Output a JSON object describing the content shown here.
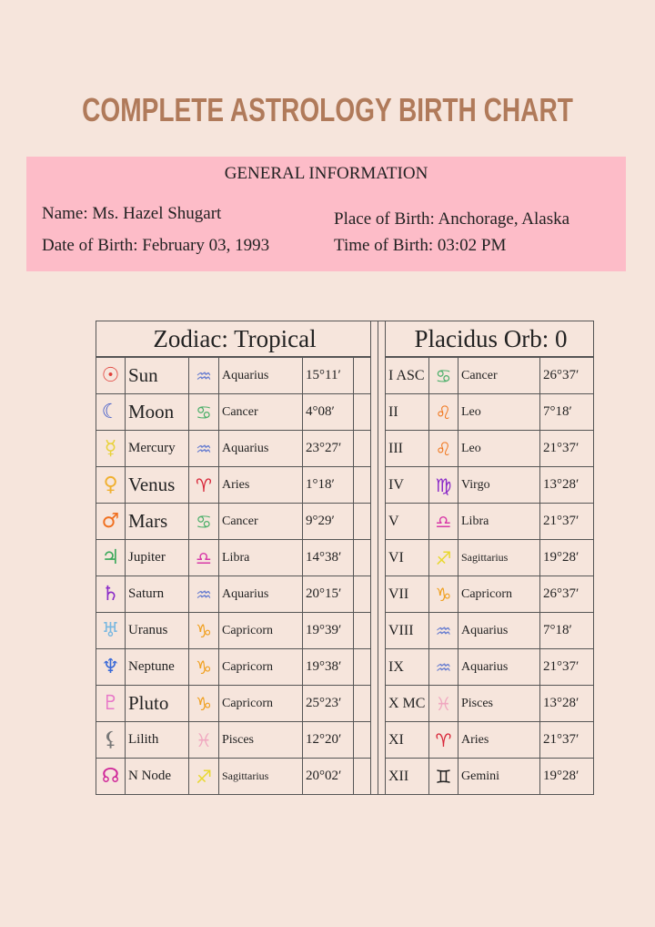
{
  "title": "COMPLETE ASTROLOGY BIRTH CHART",
  "general_info": {
    "heading": "GENERAL INFORMATION",
    "name": "Name: Ms. Hazel Shugart",
    "date_of_birth": "Date of Birth: February 03, 1993",
    "place_of_birth": "Place of Birth: Anchorage, Alaska",
    "time_of_birth": "Time of Birth: 03:02 PM"
  },
  "zodiac_table": {
    "header": "Zodiac: Tropical",
    "rows": [
      {
        "symbol": "☉",
        "symbol_color": "#e0403a",
        "name": "Sun",
        "sign_symbol": "♒",
        "sign_color": "#6a7fd0",
        "sign": "Aquarius",
        "degree": "15°11′"
      },
      {
        "symbol": "☾",
        "symbol_color": "#3a55c8",
        "name": "Moon",
        "sign_symbol": "♋",
        "sign_color": "#4caf6a",
        "sign": "Cancer",
        "degree": "4°08′"
      },
      {
        "symbol": "☿",
        "symbol_color": "#e8d23a",
        "name": "Mercury",
        "sign_symbol": "♒",
        "sign_color": "#6a7fd0",
        "sign": "Aquarius",
        "degree": "23°27′"
      },
      {
        "symbol": "♀",
        "symbol_color": "#f0b030",
        "name": "Venus",
        "sign_symbol": "♈",
        "sign_color": "#d8283a",
        "sign": "Aries",
        "degree": "1°18′"
      },
      {
        "symbol": "♂",
        "symbol_color": "#f07020",
        "name": "Mars",
        "sign_symbol": "♋",
        "sign_color": "#4caf6a",
        "sign": "Cancer",
        "degree": "9°29′"
      },
      {
        "symbol": "♃",
        "symbol_color": "#3aa85a",
        "name": "Jupiter",
        "sign_symbol": "♎",
        "sign_color": "#d83aa8",
        "sign": "Libra",
        "degree": "14°38′"
      },
      {
        "symbol": "♄",
        "symbol_color": "#8a2ac8",
        "name": "Saturn",
        "sign_symbol": "♒",
        "sign_color": "#6a7fd0",
        "sign": "Aquarius",
        "degree": "20°15′"
      },
      {
        "symbol": "♅",
        "symbol_color": "#7ab8e0",
        "name": "Uranus",
        "sign_symbol": "♑",
        "sign_color": "#f0a020",
        "sign": "Capricorn",
        "degree": "19°39′"
      },
      {
        "symbol": "♆",
        "symbol_color": "#3a6ad8",
        "name": "Neptune",
        "sign_symbol": "♑",
        "sign_color": "#f0a020",
        "sign": "Capricorn",
        "degree": "19°38′"
      },
      {
        "symbol": "♇",
        "symbol_color": "#e878c8",
        "name": "Pluto",
        "sign_symbol": "♑",
        "sign_color": "#f0a020",
        "sign": "Capricorn",
        "degree": "25°23′"
      },
      {
        "symbol": "⚸",
        "symbol_color": "#777777",
        "name": "Lilith",
        "sign_symbol": "♓",
        "sign_color": "#f0a8c0",
        "sign": "Pisces",
        "degree": "12°20′"
      },
      {
        "symbol": "☊",
        "symbol_color": "#d02a9a",
        "name": "N Node",
        "sign_symbol": "♐",
        "sign_color": "#e8d830",
        "sign": "Sagittarius",
        "degree": "20°02′"
      }
    ]
  },
  "houses_table": {
    "header": "Placidus Orb: 0",
    "rows": [
      {
        "house": "I ASC",
        "sign_symbol": "♋",
        "sign_color": "#4caf6a",
        "sign": "Cancer",
        "degree": "26°37′"
      },
      {
        "house": "II",
        "sign_symbol": "♌",
        "sign_color": "#f07820",
        "sign": "Leo",
        "degree": "7°18′"
      },
      {
        "house": "III",
        "sign_symbol": "♌",
        "sign_color": "#f07820",
        "sign": "Leo",
        "degree": "21°37′"
      },
      {
        "house": "IV",
        "sign_symbol": "♍",
        "sign_color": "#8a2ac8",
        "sign": "Virgo",
        "degree": "13°28′"
      },
      {
        "house": "V",
        "sign_symbol": "♎",
        "sign_color": "#d83aa8",
        "sign": "Libra",
        "degree": "21°37′"
      },
      {
        "house": "VI",
        "sign_symbol": "♐",
        "sign_color": "#e8d830",
        "sign": "Sagittarius",
        "degree": "19°28′"
      },
      {
        "house": "VII",
        "sign_symbol": "♑",
        "sign_color": "#f0a020",
        "sign": "Capricorn",
        "degree": "26°37′"
      },
      {
        "house": "VIII",
        "sign_symbol": "♒",
        "sign_color": "#6a7fd0",
        "sign": "Aquarius",
        "degree": "7°18′"
      },
      {
        "house": "IX",
        "sign_symbol": "♒",
        "sign_color": "#6a7fd0",
        "sign": "Aquarius",
        "degree": "21°37′"
      },
      {
        "house": "X MC",
        "sign_symbol": "♓",
        "sign_color": "#f0a8c0",
        "sign": "Pisces",
        "degree": "13°28′"
      },
      {
        "house": "XI",
        "sign_symbol": "♈",
        "sign_color": "#d8283a",
        "sign": "Aries",
        "degree": "21°37′"
      },
      {
        "house": "XII",
        "sign_symbol": "♊",
        "sign_color": "#222222",
        "sign": "Gemini",
        "degree": "19°28′"
      }
    ]
  }
}
